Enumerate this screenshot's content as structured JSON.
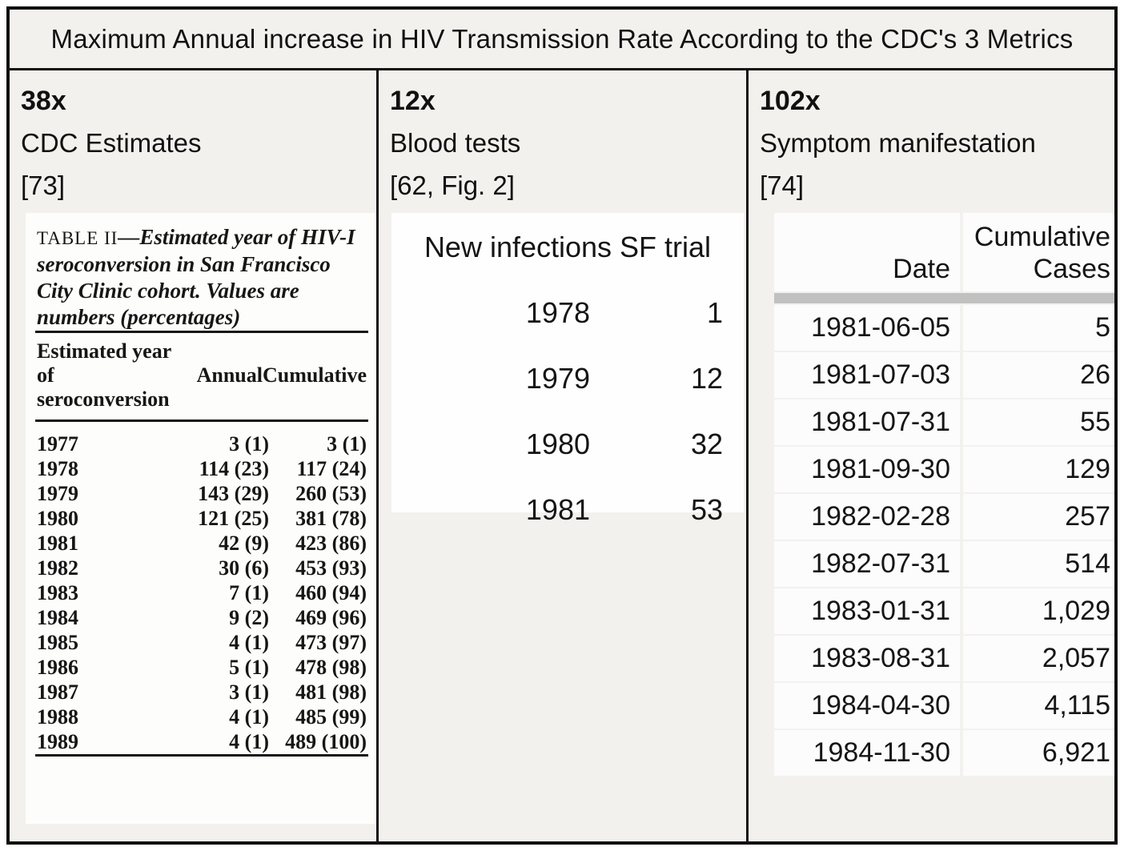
{
  "figure": {
    "title": "Maximum Annual increase in HIV Transmission Rate According to the CDC's 3 Metrics"
  },
  "panels": [
    {
      "multiplier": "38x",
      "metric": "CDC Estimates",
      "citation": "[73]",
      "scan": {
        "caption_label": "TABLE II",
        "caption_text": "—Estimated year of HIV-I seroconversion in San Francisco City Clinic cohort. Values are numbers (percentages)",
        "col_headers": [
          "Estimated year of seroconversion",
          "Annual",
          "Cumulative"
        ],
        "rows": [
          [
            "1977",
            "3 (1)",
            "3 (1)"
          ],
          [
            "1978",
            "114 (23)",
            "117 (24)"
          ],
          [
            "1979",
            "143 (29)",
            "260 (53)"
          ],
          [
            "1980",
            "121 (25)",
            "381 (78)"
          ],
          [
            "1981",
            "42 (9)",
            "423 (86)"
          ],
          [
            "1982",
            "30 (6)",
            "453 (93)"
          ],
          [
            "1983",
            "7 (1)",
            "460 (94)"
          ],
          [
            "1984",
            "9 (2)",
            "469 (96)"
          ],
          [
            "1985",
            "4 (1)",
            "473 (97)"
          ],
          [
            "1986",
            "5 (1)",
            "478 (98)"
          ],
          [
            "1987",
            "3 (1)",
            "481 (98)"
          ],
          [
            "1988",
            "4 (1)",
            "485 (99)"
          ],
          [
            "1989",
            "4 (1)",
            "489 (100)"
          ]
        ]
      }
    },
    {
      "multiplier": "12x",
      "metric": "Blood tests",
      "citation": "[62, Fig. 2]",
      "table": {
        "header": "New infections SF trial",
        "rows": [
          [
            "1978",
            "1"
          ],
          [
            "1979",
            "12"
          ],
          [
            "1980",
            "32"
          ],
          [
            "1981",
            "53"
          ]
        ]
      }
    },
    {
      "multiplier": "102x",
      "metric": "Symptom manifestation",
      "citation": "[74]",
      "table": {
        "col_headers": [
          "Date",
          "Cumulative Cases"
        ],
        "rows": [
          [
            "1981-06-05",
            "5"
          ],
          [
            "1981-07-03",
            "26"
          ],
          [
            "1981-07-31",
            "55"
          ],
          [
            "1981-09-30",
            "129"
          ],
          [
            "1982-02-28",
            "257"
          ],
          [
            "1982-07-31",
            "514"
          ],
          [
            "1983-01-31",
            "1,029"
          ],
          [
            "1983-08-31",
            "2,057"
          ],
          [
            "1984-04-30",
            "4,115"
          ],
          [
            "1984-11-30",
            "6,921"
          ]
        ]
      }
    }
  ],
  "colors": {
    "background": "#f2f1ee",
    "border": "#111111",
    "table_background": "#fdfdfc",
    "header_bar": "#c1c1c1",
    "text": "#151515"
  }
}
